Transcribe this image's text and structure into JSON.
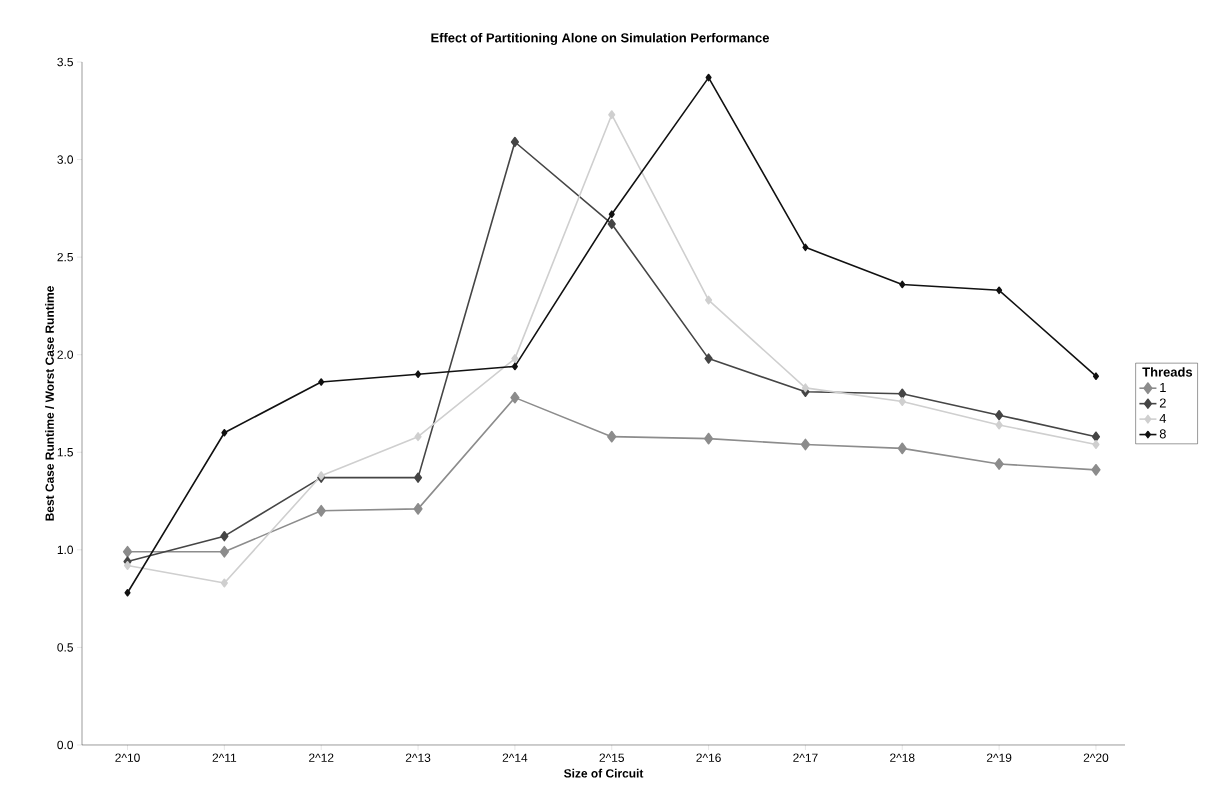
{
  "chart_data": {
    "type": "line",
    "title": "Effect of Partitioning Alone on Simulation Performance",
    "xlabel": "Size of Circuit",
    "ylabel": "Best Case Runtime / Worst Case Runtime",
    "legend_title": "Threads",
    "categories": [
      "2^10",
      "2^11",
      "2^12",
      "2^13",
      "2^14",
      "2^15",
      "2^16",
      "2^17",
      "2^18",
      "2^19",
      "2^20"
    ],
    "series": [
      {
        "name": "1",
        "color": "#8c8c8c",
        "values": [
          0.99,
          0.99,
          1.2,
          1.21,
          1.78,
          1.58,
          1.57,
          1.54,
          1.52,
          1.44,
          1.41
        ]
      },
      {
        "name": "2",
        "color": "#454545",
        "values": [
          0.94,
          1.07,
          1.37,
          1.37,
          3.09,
          2.67,
          1.98,
          1.81,
          1.8,
          1.69,
          1.58
        ]
      },
      {
        "name": "4",
        "color": "#cfcfcf",
        "values": [
          0.92,
          0.83,
          1.38,
          1.58,
          1.98,
          3.23,
          2.28,
          1.83,
          1.76,
          1.64,
          1.54
        ]
      },
      {
        "name": "8",
        "color": "#111111",
        "values": [
          0.78,
          1.6,
          1.86,
          1.9,
          1.94,
          2.72,
          3.42,
          2.55,
          2.36,
          2.33,
          1.89
        ]
      }
    ],
    "ylim": [
      0,
      3.5
    ],
    "yticks": [
      {
        "value": 0,
        "label": "0.0"
      },
      0.5,
      {
        "value": 1,
        "label": "1.0"
      },
      1.5,
      {
        "value": 2,
        "label": "2.0"
      },
      2.5,
      {
        "value": 3,
        "label": "3.0"
      },
      3.5
    ],
    "grid": false,
    "legend": "right",
    "marker": "diamond",
    "line_style": "solid"
  }
}
